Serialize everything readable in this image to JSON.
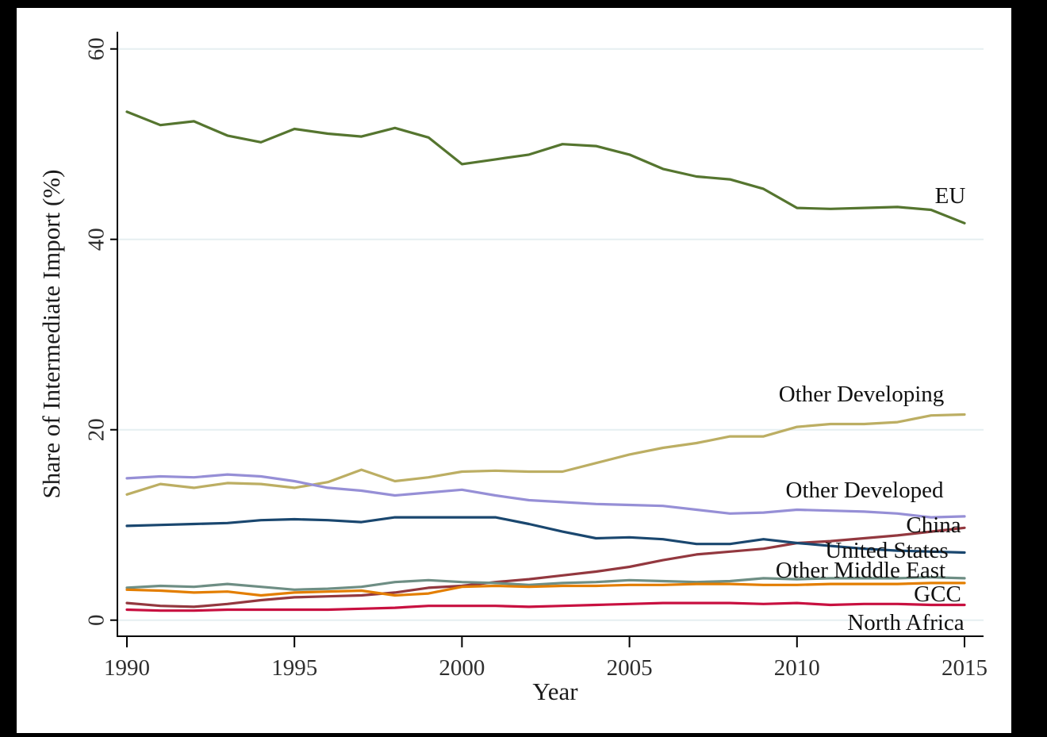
{
  "figure": {
    "background_frame_color": "#000000",
    "plot_area_color": "#ffffff",
    "axis_color": "#000000",
    "gridline_color": "#e6eff1",
    "tick_text_color": "#2e2e2e"
  },
  "chart_data": {
    "type": "line",
    "title": "",
    "xlabel": "Year",
    "ylabel": "Share of Intermediate Import (%)",
    "xlim": [
      1990,
      2015
    ],
    "ylim": [
      0,
      60
    ],
    "xticks": [
      1990,
      1995,
      2000,
      2005,
      2010,
      2015
    ],
    "yticks": [
      0,
      20,
      40,
      60
    ],
    "grid": "horizontal-faint",
    "legend_position": "direct-labels-right",
    "x": [
      1990,
      1991,
      1992,
      1993,
      1994,
      1995,
      1996,
      1997,
      1998,
      1999,
      2000,
      2001,
      2002,
      2003,
      2004,
      2005,
      2006,
      2007,
      2008,
      2009,
      2010,
      2011,
      2012,
      2013,
      2014,
      2015
    ],
    "series": [
      {
        "name": "EU",
        "color": "#55752f",
        "values": [
          53.4,
          52.0,
          52.4,
          50.9,
          50.2,
          51.6,
          51.1,
          50.8,
          51.7,
          50.7,
          47.9,
          48.4,
          48.9,
          50.0,
          49.8,
          48.9,
          47.4,
          46.6,
          46.3,
          45.3,
          43.3,
          43.2,
          43.3,
          43.4,
          43.1,
          41.7
        ]
      },
      {
        "name": "Other Developing",
        "color": "#bcae63",
        "values": [
          13.2,
          14.3,
          13.9,
          14.4,
          14.3,
          13.9,
          14.5,
          15.8,
          14.6,
          15.0,
          15.6,
          15.7,
          15.6,
          15.6,
          16.5,
          17.4,
          18.1,
          18.6,
          19.3,
          19.3,
          20.3,
          20.6,
          20.6,
          20.8,
          21.5,
          21.6
        ]
      },
      {
        "name": "Other Developed",
        "color": "#968fd6",
        "values": [
          14.9,
          15.1,
          15.0,
          15.3,
          15.1,
          14.6,
          13.9,
          13.6,
          13.1,
          13.4,
          13.7,
          13.1,
          12.6,
          12.4,
          12.2,
          12.1,
          12.0,
          11.6,
          11.2,
          11.3,
          11.6,
          11.5,
          11.4,
          11.2,
          10.8,
          10.9
        ]
      },
      {
        "name": "China",
        "color": "#93383f",
        "values": [
          1.8,
          1.5,
          1.4,
          1.7,
          2.1,
          2.4,
          2.5,
          2.6,
          2.9,
          3.4,
          3.6,
          4.0,
          4.3,
          4.7,
          5.1,
          5.6,
          6.3,
          6.9,
          7.2,
          7.5,
          8.1,
          8.3,
          8.6,
          8.9,
          9.3,
          9.7
        ]
      },
      {
        "name": "United States",
        "color": "#1a476f",
        "values": [
          9.9,
          10.0,
          10.1,
          10.2,
          10.5,
          10.6,
          10.5,
          10.3,
          10.8,
          10.8,
          10.8,
          10.8,
          10.1,
          9.3,
          8.6,
          8.7,
          8.5,
          8.0,
          8.0,
          8.5,
          8.1,
          7.8,
          7.5,
          7.3,
          7.2,
          7.1
        ]
      },
      {
        "name": "Other Middle East",
        "color": "#6e8e84",
        "values": [
          3.4,
          3.6,
          3.5,
          3.8,
          3.5,
          3.2,
          3.3,
          3.5,
          4.0,
          4.2,
          4.0,
          3.9,
          3.7,
          3.9,
          4.0,
          4.2,
          4.1,
          4.0,
          4.1,
          4.4,
          4.3,
          4.4,
          4.4,
          4.4,
          4.5,
          4.4
        ]
      },
      {
        "name": "GCC",
        "color": "#e37e00",
        "values": [
          3.2,
          3.1,
          2.9,
          3.0,
          2.6,
          2.9,
          3.0,
          3.1,
          2.6,
          2.8,
          3.5,
          3.6,
          3.5,
          3.6,
          3.6,
          3.7,
          3.7,
          3.8,
          3.8,
          3.7,
          3.7,
          3.8,
          3.8,
          3.8,
          3.9,
          3.9
        ]
      },
      {
        "name": "North Africa",
        "color": "#c81040",
        "values": [
          1.1,
          1.0,
          1.0,
          1.1,
          1.1,
          1.1,
          1.1,
          1.2,
          1.3,
          1.5,
          1.5,
          1.5,
          1.4,
          1.5,
          1.6,
          1.7,
          1.8,
          1.8,
          1.8,
          1.7,
          1.8,
          1.6,
          1.7,
          1.7,
          1.6,
          1.6
        ]
      }
    ]
  }
}
